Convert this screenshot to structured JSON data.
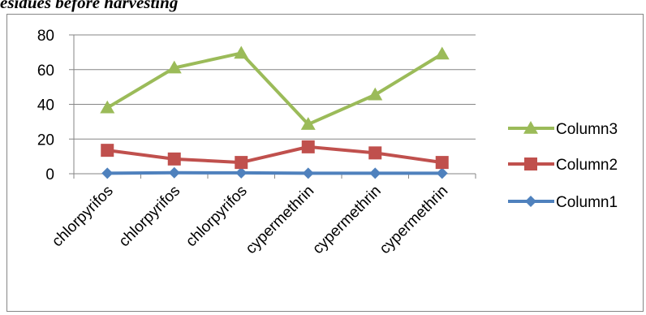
{
  "caption": "esidues before harvesting",
  "chart_data": {
    "type": "line",
    "title": "",
    "xlabel": "",
    "ylabel": "",
    "ylim": [
      0,
      80
    ],
    "yticks": [
      0,
      20,
      40,
      60,
      80
    ],
    "grid": true,
    "legend_position": "right",
    "categories": [
      "chlorpyrifos",
      "chlorpyrifos",
      "chlorpyrifos",
      "cypermethrin",
      "cypermethrin",
      "cypermethrin"
    ],
    "series": [
      {
        "name": "Column3",
        "values": [
          38,
          61,
          69.5,
          28.5,
          45.5,
          69
        ],
        "color": "#9bbb59",
        "marker": "triangle"
      },
      {
        "name": "Column2",
        "values": [
          13.5,
          8.5,
          6.5,
          15.5,
          12,
          6.5
        ],
        "color": "#c0504d",
        "marker": "square"
      },
      {
        "name": "Column1",
        "values": [
          0.3,
          0.6,
          0.5,
          0.3,
          0.3,
          0.3
        ],
        "color": "#4f81bd",
        "marker": "diamond"
      }
    ]
  }
}
